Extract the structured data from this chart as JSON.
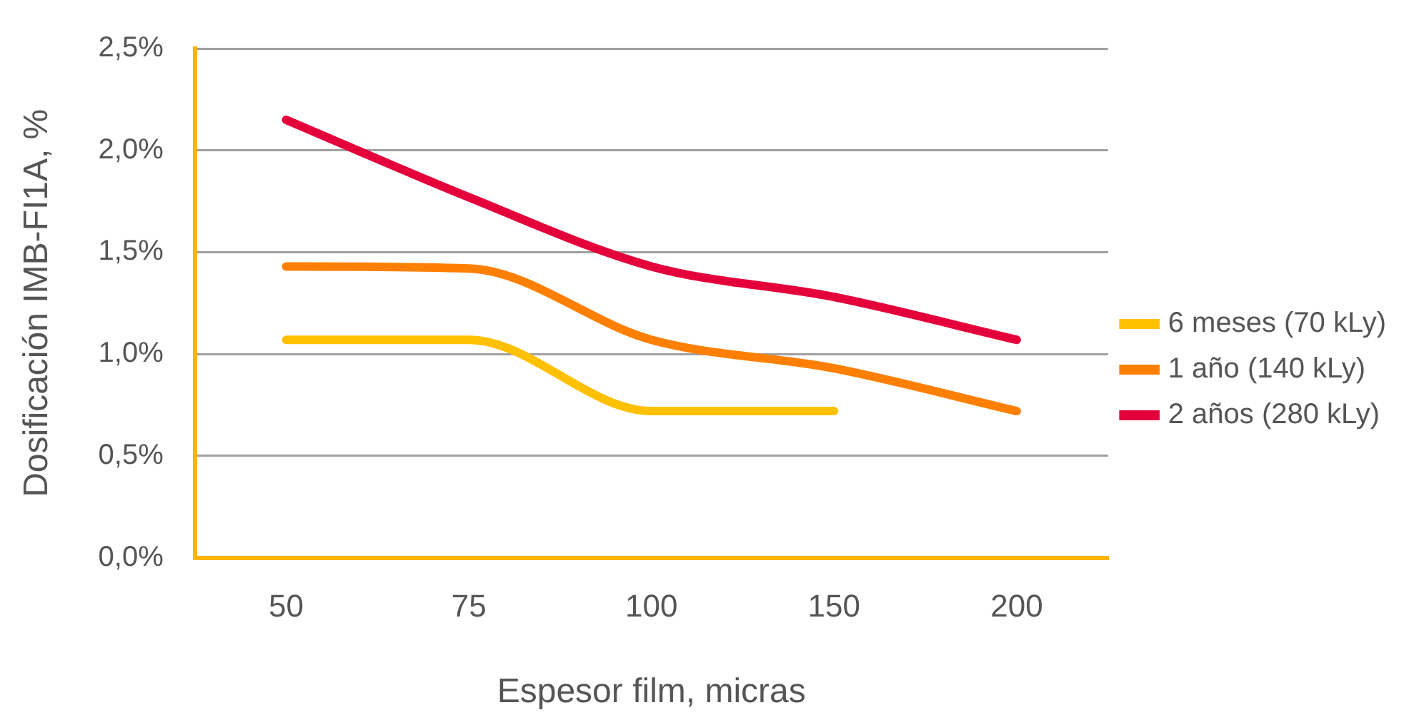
{
  "chart_data": {
    "type": "line",
    "xlabel": "Espesor film, micras",
    "ylabel": "Dosificación IMB-FI1A, %",
    "categories": [
      "50",
      "75",
      "100",
      "150",
      "200"
    ],
    "series": [
      {
        "name": "6 meses (70 kLy)",
        "color": "#ffc000",
        "values": [
          1.07,
          1.07,
          0.72,
          0.72,
          null
        ]
      },
      {
        "name": "1 año (140 kLy)",
        "color": "#ff8000",
        "values": [
          1.43,
          1.42,
          1.07,
          0.93,
          0.72
        ]
      },
      {
        "name": "2 años (280 kLy)",
        "color": "#e4003a",
        "values": [
          2.15,
          1.77,
          1.43,
          1.28,
          1.07
        ]
      }
    ],
    "ylim": [
      0,
      2.5
    ],
    "yticks": [
      {
        "value": 0,
        "label": "0,0%"
      },
      {
        "value": 0.5,
        "label": "0,5%"
      },
      {
        "value": 1,
        "label": "1,0%"
      },
      {
        "value": 1.5,
        "label": "1,5%"
      },
      {
        "value": 2,
        "label": "2,0%"
      },
      {
        "value": 2.5,
        "label": "2,5%"
      }
    ],
    "grid": "y",
    "legend": "right",
    "marker": "none",
    "line_style": "solid"
  }
}
